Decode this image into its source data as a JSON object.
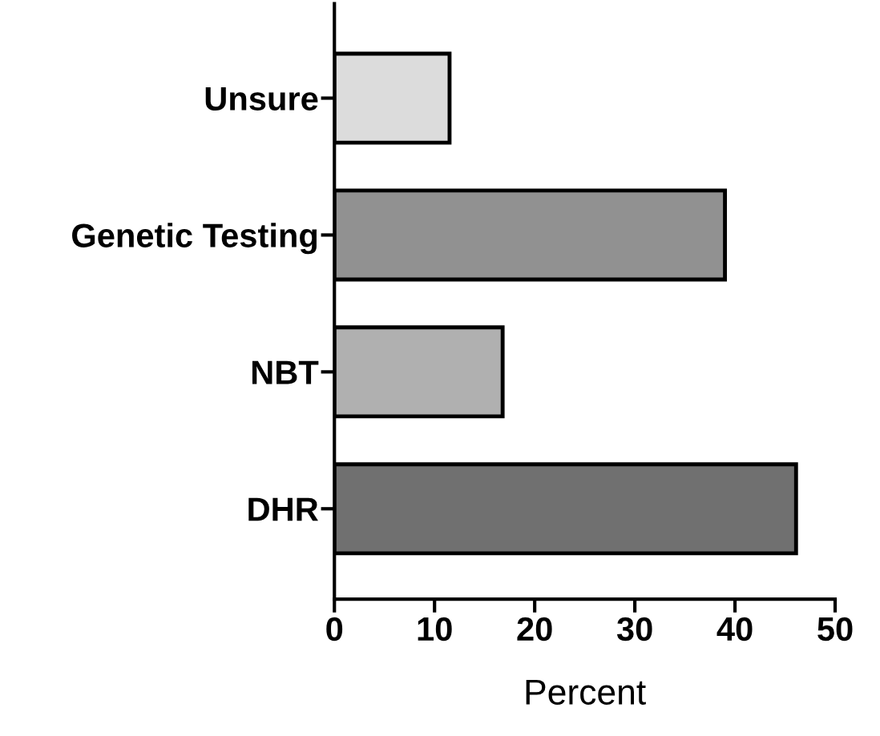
{
  "chart_data": {
    "type": "bar",
    "orientation": "horizontal",
    "xlabel": "Percent",
    "categories": [
      "Unsure",
      "Genetic Testing",
      "NBT",
      "DHR"
    ],
    "values": [
      11.5,
      39.0,
      16.8,
      46.1
    ],
    "colors": [
      "#dcdcdc",
      "#919191",
      "#b0b0b0",
      "#707070"
    ],
    "xlim": [
      0,
      50
    ],
    "xticks": [
      0,
      10,
      20,
      30,
      40,
      50
    ],
    "grid": false,
    "legend": false
  }
}
